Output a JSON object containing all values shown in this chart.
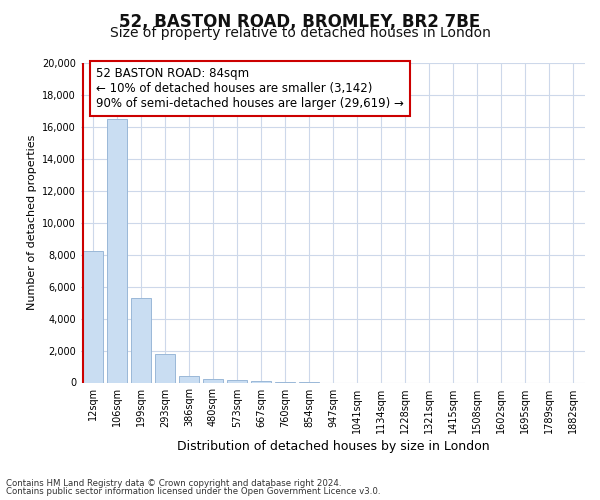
{
  "title": "52, BASTON ROAD, BROMLEY, BR2 7BE",
  "subtitle": "Size of property relative to detached houses in London",
  "xlabel": "Distribution of detached houses by size in London",
  "ylabel": "Number of detached properties",
  "bar_labels": [
    "12sqm",
    "106sqm",
    "199sqm",
    "293sqm",
    "386sqm",
    "480sqm",
    "573sqm",
    "667sqm",
    "760sqm",
    "854sqm",
    "947sqm",
    "1041sqm",
    "1134sqm",
    "1228sqm",
    "1321sqm",
    "1415sqm",
    "1508sqm",
    "1602sqm",
    "1695sqm",
    "1789sqm",
    "1882sqm"
  ],
  "bar_values": [
    8200,
    16500,
    5300,
    1800,
    400,
    200,
    150,
    100,
    60,
    50,
    0,
    0,
    0,
    0,
    0,
    0,
    0,
    0,
    0,
    0,
    0
  ],
  "bar_color": "#c9ddf2",
  "bar_edge_color": "#9ab8d8",
  "annotation_text": "52 BASTON ROAD: 84sqm\n← 10% of detached houses are smaller (3,142)\n90% of semi-detached houses are larger (29,619) →",
  "annotation_box_color": "#ffffff",
  "annotation_border_color": "#cc0000",
  "red_line_color": "#cc0000",
  "ylim": [
    0,
    20000
  ],
  "yticks": [
    0,
    2000,
    4000,
    6000,
    8000,
    10000,
    12000,
    14000,
    16000,
    18000,
    20000
  ],
  "footer_line1": "Contains HM Land Registry data © Crown copyright and database right 2024.",
  "footer_line2": "Contains public sector information licensed under the Open Government Licence v3.0.",
  "bg_color": "#ffffff",
  "grid_color": "#cdd8ea",
  "title_fontsize": 12,
  "subtitle_fontsize": 10,
  "xlabel_fontsize": 9,
  "ylabel_fontsize": 8,
  "tick_fontsize": 7,
  "annotation_fontsize": 8.5,
  "footer_fontsize": 6.2
}
